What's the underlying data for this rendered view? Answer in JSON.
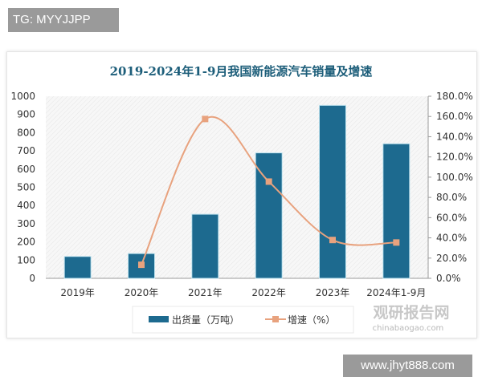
{
  "overlay": {
    "tg_label": "TG: MYYJJPP",
    "site_label": "www.jhyt888.com"
  },
  "watermark": {
    "cn": "观研报告网",
    "en": "chinabaogao.com"
  },
  "chart_data": {
    "type": "bar+line",
    "title": "2019-2024年1-9月我国新能源汽车销量及增速",
    "categories": [
      "2019年",
      "2020年",
      "2021年",
      "2022年",
      "2023年",
      "2024年1-9月"
    ],
    "series": [
      {
        "name": "出货量（万吨）",
        "type": "bar",
        "axis": "left",
        "color": "#1d6a8f",
        "values": [
          120,
          136,
          352,
          689,
          950,
          739
        ]
      },
      {
        "name": "增速（%）",
        "type": "line",
        "axis": "right",
        "color": "#e8a27e",
        "values": [
          null,
          13.4,
          157.5,
          95.6,
          37.9,
          35.4
        ]
      }
    ],
    "ylim_left": [
      0,
      1000
    ],
    "yticks_left": [
      "0",
      "100",
      "200",
      "300",
      "400",
      "500",
      "600",
      "700",
      "800",
      "900",
      "1000"
    ],
    "ylim_right": [
      0,
      180
    ],
    "yticks_right": [
      "0.0%",
      "20.0%",
      "40.0%",
      "60.0%",
      "80.0%",
      "100.0%",
      "120.0%",
      "140.0%",
      "160.0%",
      "180.0%"
    ],
    "legend_position": "bottom"
  }
}
